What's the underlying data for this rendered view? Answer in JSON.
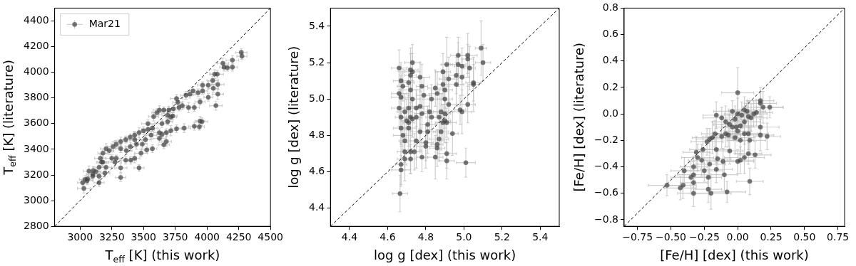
{
  "chart_data": [
    {
      "type": "scatter",
      "xlabel": "T$_{eff}$ [K] (this work)",
      "ylabel": "T$_{eff}$ [K] (literature)",
      "xlim": [
        2800,
        4500
      ],
      "ylim": [
        2800,
        4500
      ],
      "xticks": [
        3000,
        3250,
        3500,
        3750,
        4000,
        4250,
        4500
      ],
      "yticks": [
        2800,
        3000,
        3200,
        3400,
        3600,
        3800,
        4000,
        4200,
        4400
      ],
      "grid": false,
      "legend": "top left",
      "marker": "circle",
      "series": [
        {
          "name": "Mar21",
          "color": "#404040",
          "x": [
            4270,
            4275,
            4200,
            4200,
            4125,
            4135,
            4160,
            4080,
            4060,
            4045,
            4010,
            3965,
            4085,
            4050,
            4085,
            4010,
            3965,
            3930,
            3890,
            3865,
            3835,
            3945,
            4070,
            3900,
            3855,
            3805,
            3780,
            3760,
            3770,
            3735,
            3700,
            3660,
            3625,
            3605,
            3690,
            3730,
            3690,
            3645,
            3945,
            3960,
            3900,
            3940,
            3820,
            3760,
            3715,
            3680,
            3645,
            3625,
            3680,
            3660,
            3625,
            3570,
            3535,
            3500,
            3465,
            3430,
            3395,
            3535,
            3580,
            3560,
            3515,
            3360,
            3320,
            3285,
            3260,
            3570,
            3525,
            3480,
            3430,
            3400,
            3360,
            3465,
            3320,
            3320,
            3205,
            3230,
            3180,
            3250,
            3180,
            3205,
            3160,
            3170,
            3150,
            3195,
            3150,
            3100,
            3125,
            3100,
            3060,
            3055,
            3040,
            3020,
            3030,
            3150,
            3070,
            3105,
            3285,
            3275,
            3395,
            3365,
            3430,
            3445,
            3490,
            3320,
            3715
          ],
          "values": [
            4155,
            4125,
            4095,
            4040,
            4070,
            4040,
            4035,
            3985,
            3985,
            3935,
            3900,
            3900,
            3905,
            3875,
            3830,
            3805,
            3855,
            3840,
            3855,
            3830,
            3820,
            3770,
            3740,
            3725,
            3725,
            3740,
            3725,
            3795,
            3765,
            3715,
            3705,
            3705,
            3705,
            3685,
            3665,
            3660,
            3615,
            3600,
            3620,
            3615,
            3580,
            3575,
            3565,
            3560,
            3545,
            3530,
            3515,
            3485,
            3460,
            3435,
            3530,
            3565,
            3555,
            3545,
            3530,
            3510,
            3495,
            3600,
            3655,
            3510,
            3475,
            3475,
            3460,
            3440,
            3420,
            3405,
            3395,
            3370,
            3330,
            3315,
            3315,
            3255,
            3255,
            3180,
            3405,
            3390,
            3370,
            3330,
            3300,
            3260,
            3330,
            3300,
            3260,
            3215,
            3190,
            3190,
            3225,
            3205,
            3170,
            3155,
            3165,
            3140,
            3095,
            3140,
            3230,
            3235,
            3330,
            3300,
            3420,
            3390,
            3475,
            3440,
            3440,
            3405,
            3650
          ],
          "errors": [
            30,
            25,
            35,
            30,
            40,
            30,
            25,
            30,
            35,
            30,
            30,
            25,
            35,
            30,
            40,
            30,
            25,
            30,
            35,
            30,
            30,
            25,
            35,
            30,
            40,
            30,
            25,
            30,
            35,
            30,
            30,
            25,
            35,
            30,
            40,
            30,
            25,
            30,
            35,
            30,
            30,
            25,
            35,
            30,
            40,
            30,
            25,
            30,
            35,
            30,
            30,
            25,
            35,
            30,
            40,
            30,
            25,
            30,
            35,
            30,
            30,
            25,
            35,
            30,
            40,
            30,
            25,
            30,
            35,
            30,
            30,
            25,
            35,
            30,
            40,
            30,
            25,
            30,
            35,
            30,
            30,
            25,
            35,
            30,
            40,
            30,
            25,
            30,
            35,
            30,
            30,
            25,
            35,
            30,
            40,
            30,
            25,
            30,
            35,
            30,
            30,
            40,
            30,
            30,
            35
          ],
          "xerrors": [
            45,
            40,
            50,
            40,
            45,
            35,
            40,
            50,
            40,
            45,
            45,
            40,
            50,
            40,
            45,
            35,
            40,
            50,
            40,
            45,
            45,
            40,
            50,
            40,
            45,
            35,
            40,
            50,
            40,
            45,
            45,
            40,
            50,
            40,
            45,
            35,
            40,
            50,
            40,
            45,
            45,
            40,
            50,
            40,
            45,
            35,
            40,
            50,
            40,
            45,
            45,
            40,
            50,
            40,
            45,
            35,
            40,
            50,
            40,
            45,
            45,
            40,
            50,
            40,
            45,
            35,
            40,
            50,
            40,
            45,
            45,
            40,
            50,
            40,
            45,
            35,
            40,
            50,
            40,
            45,
            45,
            40,
            50,
            40,
            45,
            35,
            40,
            50,
            40,
            45,
            45,
            40,
            50,
            40,
            45,
            35,
            40,
            50,
            40,
            45,
            40,
            45,
            40,
            40,
            45
          ]
        },
        {
          "type": "line",
          "color": "#000000",
          "x": [
            2800,
            4500
          ],
          "values": [
            2800,
            4500
          ],
          "line_style": "dashed",
          "marker": "none"
        }
      ]
    },
    {
      "type": "scatter",
      "xlabel": "log g [dex] (this work)",
      "ylabel": "log g [dex] (literature)",
      "xlim": [
        4.3,
        5.5
      ],
      "ylim": [
        4.3,
        5.5
      ],
      "xticks": [
        4.4,
        4.6,
        4.8,
        {
          "value": 5,
          "label": "5.0"
        },
        5.2,
        5.4
      ],
      "yticks": [
        4.4,
        4.6,
        4.8,
        {
          "value": 5,
          "label": "5.0"
        },
        5.2,
        5.4
      ],
      "grid": false,
      "marker": "circle",
      "series": [
        {
          "color": "#404040",
          "x": [
            4.665,
            4.67,
            4.67,
            4.66,
            5.09,
            5.1,
            5.02,
            5.02,
            4.97,
            4.97,
            4.99,
            5.03,
            5.01,
            5.05,
            5.05,
            5.02,
            4.99,
            4.98,
            4.96,
            4.96,
            4.99,
            4.94,
            4.91,
            4.91,
            4.91,
            4.89,
            4.92,
            4.89,
            4.9,
            4.9,
            4.92,
            4.9,
            4.91,
            4.88,
            4.87,
            4.88,
            4.87,
            4.86,
            4.86,
            4.85,
            4.85,
            4.86,
            4.83,
            4.82,
            4.83,
            4.8,
            4.8,
            4.78,
            4.81,
            4.81,
            4.79,
            4.78,
            4.77,
            4.75,
            4.75,
            4.73,
            4.72,
            4.71,
            4.73,
            4.72,
            4.73,
            4.72,
            4.72,
            4.73,
            4.71,
            4.71,
            4.72,
            4.72,
            4.74,
            4.69,
            4.69,
            4.69,
            4.68,
            4.67,
            4.67,
            4.66,
            4.67,
            4.68,
            4.67,
            4.66,
            4.69,
            4.7,
            4.71,
            4.77,
            4.75,
            4.78,
            4.77,
            4.9,
            4.89
          ],
          "values": [
            4.48,
            4.64,
            4.61,
            5.17,
            5.28,
            5.2,
            5.24,
            5.22,
            5.24,
            5.19,
            5.18,
            5.17,
            4.65,
            5.09,
            5.08,
            4.97,
            4.93,
            4.94,
            5.13,
            5.08,
            5.12,
            4.81,
            4.7,
            4.66,
            5.19,
            5.15,
            5.11,
            5.08,
            5.05,
            5,
            4.97,
            4.88,
            4.87,
            4.93,
            4.9,
            4.82,
            4.78,
            4.75,
            4.73,
            4.68,
            5.06,
            5.03,
            5,
            4.93,
            4.9,
            4.76,
            4.74,
            4.68,
            4.86,
            4.82,
            5.02,
            5.07,
            5.12,
            4.95,
            4.9,
            5,
            5.05,
            5.09,
            5.15,
            5.16,
            5.2,
            5.13,
            4.9,
            4.89,
            4.87,
            4.84,
            4.71,
            4.67,
            4.71,
            4.67,
            4.71,
            4.77,
            4.8,
            4.84,
            4.9,
            4.95,
            5.01,
            5.07,
            5.1,
            5.03,
            4.93,
            4.88,
            4.95,
            4.82,
            4.77,
            4.92,
            4.96,
            4.92,
            4.87
          ],
          "errors": [
            0.1,
            0.12,
            0.08,
            0.1,
            0.15,
            0.1,
            0.12,
            0.08,
            0.1,
            0.12,
            0.1,
            0.12,
            0.08,
            0.1,
            0.15,
            0.1,
            0.12,
            0.08,
            0.1,
            0.12,
            0.1,
            0.12,
            0.08,
            0.1,
            0.15,
            0.1,
            0.12,
            0.08,
            0.1,
            0.12,
            0.1,
            0.12,
            0.08,
            0.1,
            0.15,
            0.1,
            0.12,
            0.08,
            0.1,
            0.12,
            0.1,
            0.12,
            0.08,
            0.1,
            0.15,
            0.1,
            0.12,
            0.08,
            0.1,
            0.12,
            0.1,
            0.12,
            0.08,
            0.1,
            0.15,
            0.1,
            0.12,
            0.08,
            0.1,
            0.12,
            0.1,
            0.12,
            0.08,
            0.1,
            0.15,
            0.1,
            0.12,
            0.08,
            0.1,
            0.12,
            0.1,
            0.12,
            0.08,
            0.1,
            0.15,
            0.1,
            0.12,
            0.08,
            0.1,
            0.12,
            0.1,
            0.12,
            0.08,
            0.1,
            0.15,
            0.1,
            0.12,
            0.08,
            0.1
          ],
          "xerrors": [
            0.04,
            0.03,
            0.05,
            0.04,
            0.03,
            0.04,
            0.05,
            0.03,
            0.04,
            0.04,
            0.04,
            0.03,
            0.05,
            0.04,
            0.03,
            0.04,
            0.05,
            0.03,
            0.04,
            0.04,
            0.04,
            0.03,
            0.05,
            0.04,
            0.03,
            0.04,
            0.05,
            0.03,
            0.04,
            0.04,
            0.04,
            0.03,
            0.05,
            0.04,
            0.03,
            0.04,
            0.05,
            0.03,
            0.04,
            0.04,
            0.04,
            0.03,
            0.05,
            0.04,
            0.03,
            0.04,
            0.05,
            0.03,
            0.04,
            0.04,
            0.04,
            0.03,
            0.05,
            0.04,
            0.03,
            0.04,
            0.05,
            0.03,
            0.04,
            0.04,
            0.04,
            0.03,
            0.05,
            0.04,
            0.03,
            0.04,
            0.05,
            0.03,
            0.04,
            0.04,
            0.04,
            0.03,
            0.05,
            0.04,
            0.03,
            0.04,
            0.05,
            0.03,
            0.04,
            0.04,
            0.04,
            0.03,
            0.05,
            0.04,
            0.03,
            0.04,
            0.05,
            0.03,
            0.04
          ]
        },
        {
          "type": "line",
          "color": "#000000",
          "x": [
            4.3,
            5.5
          ],
          "values": [
            4.3,
            5.5
          ],
          "line_style": "dashed",
          "marker": "none"
        }
      ]
    },
    {
      "type": "scatter",
      "xlabel": "[Fe/H] [dex] (this work)",
      "ylabel": "[Fe/H] [dex] (literature)",
      "xlim": [
        -0.85,
        0.8
      ],
      "ylim": [
        -0.85,
        0.8
      ],
      "xticks": [
        {
          "value": -0.75,
          "label": "−0.75"
        },
        {
          "value": -0.5,
          "label": "−0.50"
        },
        {
          "value": -0.25,
          "label": "−0.25"
        },
        {
          "value": 0,
          "label": "0.00"
        },
        0.25,
        {
          "value": 0.5,
          "label": "0.50"
        },
        0.75
      ],
      "yticks": [
        {
          "value": -0.8,
          "label": "−0.8"
        },
        {
          "value": -0.6,
          "label": "−0.6"
        },
        {
          "value": -0.4,
          "label": "−0.4"
        },
        {
          "value": -0.2,
          "label": "−0.2"
        },
        {
          "value": 0,
          "label": "0.0"
        },
        0.2,
        0.4,
        0.6,
        0.8
      ],
      "grid": false,
      "marker": "circle",
      "series": [
        {
          "color": "#404040",
          "x": [
            0,
            0.24,
            0.19,
            0.17,
            0.17,
            0.22,
            0.17,
            0.17,
            0.13,
            0.09,
            0.09,
            0.08,
            0.05,
            0.02,
            0,
            -0.06,
            -0.08,
            -0.1,
            -0.16,
            -0.16,
            -0.11,
            -0.15,
            -0.2,
            -0.22,
            -0.21,
            -0.22,
            -0.25,
            -0.27,
            -0.33,
            -0.33,
            -0.33,
            -0.33,
            -0.35,
            -0.41,
            -0.43,
            -0.4,
            -0.53,
            -0.31,
            -0.3,
            -0.26,
            -0.23,
            -0.21,
            -0.19,
            -0.17,
            -0.12,
            -0.16,
            -0.12,
            -0.09,
            -0.06,
            -0.02,
            -0.04,
            0,
            -0.02,
            0.02,
            0.05,
            0.03,
            0.07,
            0.08,
            0.1,
            0.12,
            0.14,
            0.05,
            0.08,
            0.02,
            -0.07,
            -0.09,
            -0.04,
            0,
            0.05,
            -0.01
          ],
          "values": [
            0.16,
            0.05,
            0.05,
            0.1,
            0.08,
            -0.17,
            -0.1,
            -0.16,
            -0.31,
            -0.51,
            -0.2,
            -0.3,
            -0.33,
            -0.35,
            -0.36,
            -0.28,
            -0.59,
            -0.46,
            -0.42,
            -0.27,
            -0.36,
            -0.34,
            -0.6,
            -0.48,
            -0.38,
            -0.57,
            -0.43,
            -0.35,
            -0.6,
            -0.52,
            -0.46,
            -0.4,
            -0.48,
            -0.54,
            -0.56,
            -0.43,
            -0.54,
            -0.29,
            -0.33,
            -0.27,
            -0.21,
            -0.19,
            -0.18,
            -0.15,
            -0.17,
            -0.01,
            -0.03,
            -0.06,
            -0.08,
            -0.04,
            -0.1,
            -0.13,
            -0.18,
            -0.09,
            -0.06,
            -0.01,
            0.02,
            -0.02,
            -0.03,
            0,
            0.01,
            -0.15,
            -0.15,
            -0.2,
            -0.16,
            -0.15,
            0.02,
            0,
            0.03,
            -0.1
          ],
          "errors": [
            0.19,
            0.08,
            0.12,
            0.1,
            0.09,
            0.1,
            0.08,
            0.12,
            0.1,
            0.1,
            0.1,
            0.08,
            0.12,
            0.1,
            0.09,
            0.1,
            0.08,
            0.12,
            0.1,
            0.1,
            0.1,
            0.08,
            0.12,
            0.1,
            0.09,
            0.1,
            0.08,
            0.12,
            0.1,
            0.1,
            0.1,
            0.08,
            0.12,
            0.1,
            0.09,
            0.1,
            0.08,
            0.12,
            0.1,
            0.1,
            0.1,
            0.08,
            0.12,
            0.1,
            0.09,
            0.1,
            0.08,
            0.12,
            0.1,
            0.1,
            0.1,
            0.08,
            0.12,
            0.1,
            0.09,
            0.1,
            0.08,
            0.12,
            0.1,
            0.1,
            0.1,
            0.08,
            0.12,
            0.1,
            0.09,
            0.1,
            0.08,
            0.12,
            0.1,
            0.1
          ],
          "xerrors": [
            0.12,
            0.1,
            0.15,
            0.1,
            0.12,
            0.1,
            0.14,
            0.1,
            0.12,
            0.1,
            0.12,
            0.1,
            0.15,
            0.1,
            0.12,
            0.1,
            0.14,
            0.1,
            0.12,
            0.1,
            0.12,
            0.1,
            0.15,
            0.1,
            0.12,
            0.1,
            0.14,
            0.1,
            0.12,
            0.1,
            0.12,
            0.1,
            0.15,
            0.1,
            0.12,
            0.1,
            0.14,
            0.1,
            0.12,
            0.1,
            0.12,
            0.1,
            0.15,
            0.1,
            0.12,
            0.1,
            0.14,
            0.1,
            0.12,
            0.1,
            0.12,
            0.1,
            0.15,
            0.1,
            0.12,
            0.1,
            0.14,
            0.1,
            0.12,
            0.1,
            0.12,
            0.1,
            0.15,
            0.1,
            0.12,
            0.1,
            0.14,
            0.1,
            0.12,
            0.1
          ]
        },
        {
          "type": "line",
          "color": "#000000",
          "x": [
            -0.85,
            0.8
          ],
          "values": [
            -0.85,
            0.8
          ],
          "line_style": "dashed",
          "marker": "none"
        }
      ]
    }
  ]
}
